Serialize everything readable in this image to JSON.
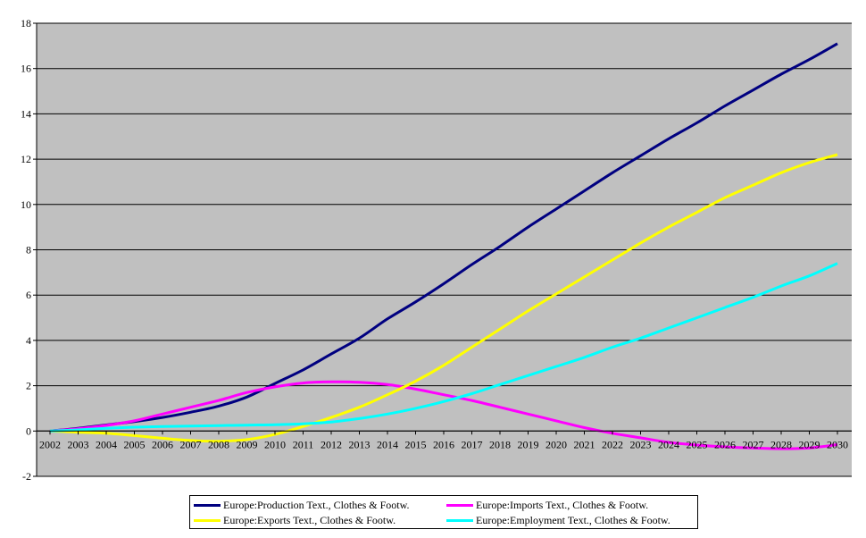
{
  "chart_data": {
    "type": "line",
    "x": [
      2002,
      2003,
      2004,
      2005,
      2006,
      2007,
      2008,
      2009,
      2010,
      2011,
      2012,
      2013,
      2014,
      2015,
      2016,
      2017,
      2018,
      2019,
      2020,
      2021,
      2022,
      2023,
      2024,
      2025,
      2026,
      2027,
      2028,
      2029,
      2030
    ],
    "x_tick_labels": [
      "2002",
      "2003",
      "2004",
      "2005",
      "2006",
      "2007",
      "2008",
      "2009",
      "2010",
      "2011",
      "2012",
      "2013",
      "2014",
      "2015",
      "2016",
      "2017",
      "2018",
      "2019",
      "2020",
      "2021",
      "2022",
      "2023",
      "2024",
      "2025",
      "2026",
      "2027",
      "2028",
      "2029",
      "2030"
    ],
    "ylim": [
      -2,
      18
    ],
    "y_ticks": [
      -2,
      0,
      2,
      4,
      6,
      8,
      10,
      12,
      14,
      16,
      18
    ],
    "grid": true,
    "legend_position": "bottom",
    "plot_background": "#c0c0c0",
    "series": [
      {
        "name": "Europe:Production Text., Clothes & Footw.",
        "color": "#000080",
        "values": [
          0,
          0.12,
          0.27,
          0.42,
          0.6,
          0.83,
          1.1,
          1.5,
          2.1,
          2.7,
          3.4,
          4.1,
          4.95,
          5.7,
          6.5,
          7.35,
          8.15,
          9.0,
          9.8,
          10.6,
          11.4,
          12.15,
          12.9,
          13.6,
          14.35,
          15.05,
          15.75,
          16.4,
          17.1
        ]
      },
      {
        "name": "Europe:Imports Text., Clothes & Footw.",
        "color": "#ff00ff",
        "values": [
          0,
          0.1,
          0.25,
          0.45,
          0.75,
          1.05,
          1.35,
          1.7,
          1.95,
          2.12,
          2.17,
          2.15,
          2.05,
          1.85,
          1.6,
          1.35,
          1.05,
          0.75,
          0.45,
          0.15,
          -0.1,
          -0.3,
          -0.5,
          -0.62,
          -0.7,
          -0.75,
          -0.78,
          -0.75,
          -0.6
        ]
      },
      {
        "name": "Europe:Exports Text., Clothes & Footw.",
        "color": "#ffff00",
        "values": [
          0,
          -0.05,
          -0.1,
          -0.2,
          -0.32,
          -0.42,
          -0.45,
          -0.38,
          -0.15,
          0.2,
          0.6,
          1.05,
          1.6,
          2.2,
          2.9,
          3.7,
          4.5,
          5.3,
          6.05,
          6.8,
          7.55,
          8.3,
          9.0,
          9.65,
          10.3,
          10.85,
          11.4,
          11.85,
          12.2
        ]
      },
      {
        "name": "Europe:Employment Text., Clothes & Footw.",
        "color": "#00ffff",
        "values": [
          0,
          0.05,
          0.12,
          0.17,
          0.2,
          0.22,
          0.24,
          0.26,
          0.28,
          0.32,
          0.4,
          0.55,
          0.75,
          1.0,
          1.3,
          1.65,
          2.05,
          2.45,
          2.85,
          3.25,
          3.7,
          4.1,
          4.55,
          5.0,
          5.45,
          5.9,
          6.4,
          6.85,
          7.4
        ]
      }
    ]
  }
}
